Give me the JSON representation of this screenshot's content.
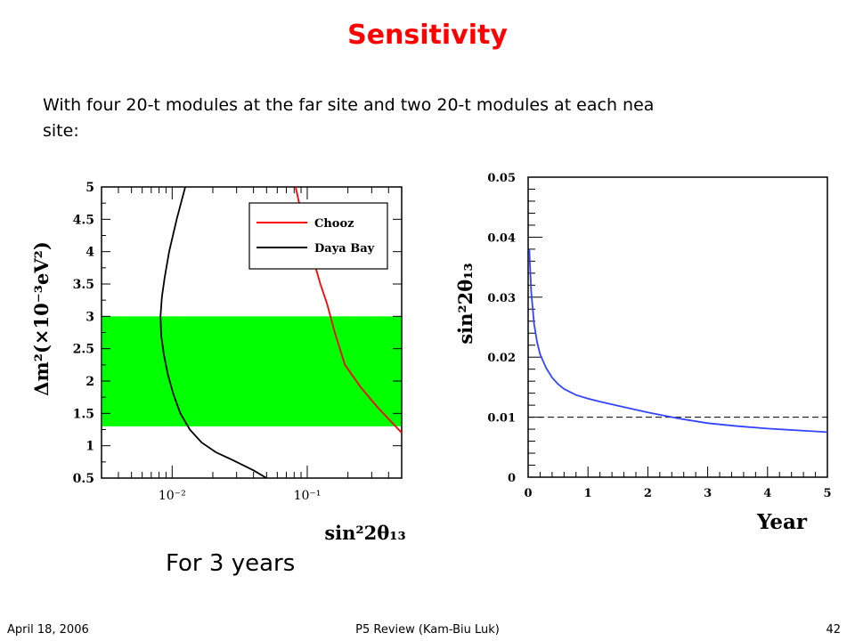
{
  "slide": {
    "title": "Sensitivity",
    "intro_line1": "With four 20-t modules at the far site and two 20-t modules at each nea",
    "intro_line2": "site:",
    "note": "For 3 years",
    "footer": {
      "date": "April 18, 2006",
      "center": "P5 Review (Kam-Biu Luk)",
      "page": "42"
    }
  },
  "colors": {
    "title": "#ff0000",
    "band": "#00ff00",
    "chooz": "#ff0000",
    "daya_bay": "#000000",
    "sensitivity_curve": "#3344ff"
  },
  "chart_data": [
    {
      "type": "line",
      "xscale": "log",
      "xlim": [
        0.003,
        0.5
      ],
      "ylim": [
        0.5,
        5
      ],
      "ylabel": "Δm²(×10⁻³eV²)",
      "xlabel": "sin²2θ₁₃",
      "x_tick_labels": [
        "10⁻²",
        "10⁻¹"
      ],
      "x_ticks": [
        0.01,
        0.1
      ],
      "y_ticks": [
        0.5,
        1,
        1.5,
        2,
        2.5,
        3,
        3.5,
        4,
        4.5,
        5
      ],
      "y_tick_labels": [
        "0.5",
        "1",
        "1.5",
        "2",
        "2.5",
        "3",
        "3.5",
        "4",
        "4.5",
        "5"
      ],
      "legend": {
        "position": "top-right",
        "entries": [
          "Chooz",
          "Daya Bay"
        ]
      },
      "band": {
        "y_from": 1.3,
        "y_to": 3.0
      },
      "series": [
        {
          "name": "Chooz",
          "x": [
            0.082,
            0.095,
            0.11,
            0.125,
            0.14,
            0.16,
            0.19,
            0.25,
            0.33,
            0.5
          ],
          "y": [
            5.0,
            4.4,
            3.9,
            3.5,
            3.2,
            2.75,
            2.25,
            1.9,
            1.6,
            1.2
          ]
        },
        {
          "name": "Daya Bay",
          "x": [
            0.0125,
            0.0108,
            0.0095,
            0.0088,
            0.0084,
            0.0082,
            0.0083,
            0.0087,
            0.0093,
            0.0102,
            0.0115,
            0.0135,
            0.0165,
            0.021,
            0.028,
            0.04,
            0.05
          ],
          "y": [
            5.0,
            4.5,
            4.0,
            3.6,
            3.3,
            3.0,
            2.7,
            2.4,
            2.1,
            1.8,
            1.5,
            1.25,
            1.05,
            0.9,
            0.78,
            0.62,
            0.5
          ]
        }
      ]
    },
    {
      "type": "line",
      "xlim": [
        0,
        5
      ],
      "ylim": [
        0,
        0.05
      ],
      "xlabel": "Year",
      "ylabel": "sin²2θ₁₃",
      "x_ticks": [
        0,
        1,
        2,
        3,
        4,
        5
      ],
      "x_tick_labels": [
        "0",
        "1",
        "2",
        "3",
        "4",
        "5"
      ],
      "y_ticks": [
        0,
        0.01,
        0.02,
        0.03,
        0.04,
        0.05
      ],
      "y_tick_labels": [
        "0",
        "0.01",
        "0.02",
        "0.03",
        "0.04",
        "0.05"
      ],
      "reference_line": {
        "y": 0.01,
        "style": "dashed"
      },
      "series": [
        {
          "x": [
            0.02,
            0.05,
            0.1,
            0.15,
            0.2,
            0.3,
            0.4,
            0.5,
            0.6,
            0.8,
            1.0,
            1.2,
            1.5,
            2.0,
            2.5,
            3.0,
            3.5,
            4.0,
            4.5,
            5.0
          ],
          "y": [
            0.038,
            0.031,
            0.0255,
            0.0225,
            0.0205,
            0.0182,
            0.0166,
            0.0155,
            0.0147,
            0.0137,
            0.0131,
            0.0126,
            0.0119,
            0.0108,
            0.0098,
            0.009,
            0.0085,
            0.0081,
            0.0078,
            0.0075
          ]
        }
      ]
    }
  ]
}
